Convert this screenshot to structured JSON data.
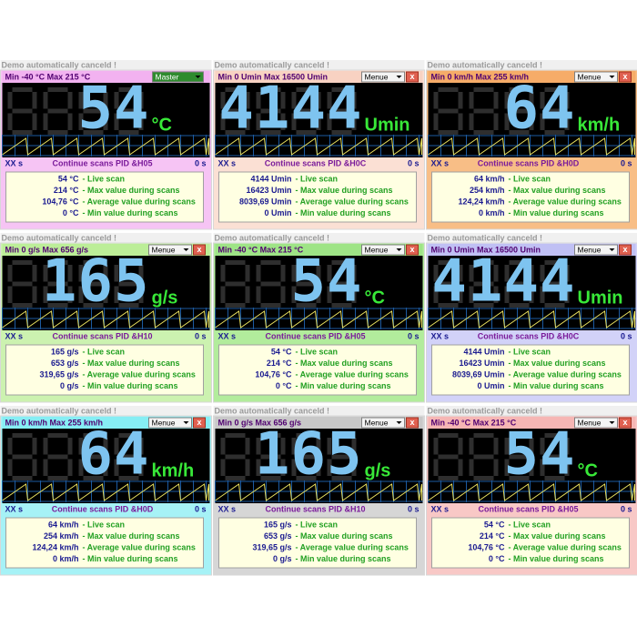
{
  "panels": [
    {
      "demo": "Demo automatically canceld !",
      "title": "Min -40 °C Max 215 °C",
      "menu": "Master",
      "display": "54",
      "unit": "°C",
      "status_left": "XX s",
      "status_center": "Continue scans PID &H05",
      "status_right": "0 s",
      "stats": [
        [
          "54 °C",
          "- Live scan"
        ],
        [
          "214 °C",
          "- Max value during scans"
        ],
        [
          "104,76 °C",
          "- Average value during scans"
        ],
        [
          "0 °C",
          "- Min value during scans"
        ]
      ]
    },
    {
      "demo": "Demo automatically canceld !",
      "title": "Min 0 Umin Max 16500 Umin",
      "menu": "Menue",
      "close": "x",
      "display": "4144",
      "unit": "Umin",
      "status_left": "XX s",
      "status_center": "Continue scans PID &H0C",
      "status_right": "0 s",
      "stats": [
        [
          "4144 Umin",
          "- Live scan"
        ],
        [
          "16423 Umin",
          "- Max value during scans"
        ],
        [
          "8039,69 Umin",
          "- Average value during scans"
        ],
        [
          "0 Umin",
          "- Min value during scans"
        ]
      ]
    },
    {
      "demo": "Demo automatically canceld !",
      "title": "Min 0 km/h Max 255 km/h",
      "menu": "Menue",
      "close": "x",
      "display": "64",
      "unit": "km/h",
      "status_left": "XX s",
      "status_center": "Continue scans PID &H0D",
      "status_right": "0 s",
      "stats": [
        [
          "64 km/h",
          "- Live scan"
        ],
        [
          "254 km/h",
          "- Max value during scans"
        ],
        [
          "124,24 km/h",
          "- Average value during scans"
        ],
        [
          "0 km/h",
          "- Min value during scans"
        ]
      ]
    },
    {
      "demo": "Demo automatically canceld !",
      "title": "Min 0 g/s Max 656 g/s",
      "menu": "Menue",
      "close": "x",
      "display": "165",
      "unit": "g/s",
      "status_left": "XX s",
      "status_center": "Continue scans PID &H10",
      "status_right": "0 s",
      "stats": [
        [
          "165 g/s",
          "- Live scan"
        ],
        [
          "653 g/s",
          "- Max value during scans"
        ],
        [
          "319,65 g/s",
          "- Average value during scans"
        ],
        [
          "0 g/s",
          "- Min value during scans"
        ]
      ]
    },
    {
      "demo": "Demo automatically canceld !",
      "title": "Min -40 °C Max 215 °C",
      "menu": "Menue",
      "close": "x",
      "display": "54",
      "unit": "°C",
      "status_left": "XX s",
      "status_center": "Continue scans PID &H05",
      "status_right": "0 s",
      "stats": [
        [
          "54 °C",
          "- Live scan"
        ],
        [
          "214 °C",
          "- Max value during scans"
        ],
        [
          "104,76 °C",
          "- Average value during scans"
        ],
        [
          "0 °C",
          "- Min value during scans"
        ]
      ]
    },
    {
      "demo": "Demo automatically canceld !",
      "title": "Min 0 Umin Max 16500 Umin",
      "menu": "Menue",
      "close": "x",
      "display": "4144",
      "unit": "Umin",
      "status_left": "XX s",
      "status_center": "Continue scans PID &H0C",
      "status_right": "0 s",
      "stats": [
        [
          "4144 Umin",
          "- Live scan"
        ],
        [
          "16423 Umin",
          "- Max value during scans"
        ],
        [
          "8039,69 Umin",
          "- Average value during scans"
        ],
        [
          "0 Umin",
          "- Min value during scans"
        ]
      ]
    },
    {
      "demo": "Demo automatically canceld !",
      "title": "Min 0 km/h Max 255 km/h",
      "menu": "Menue",
      "close": "x",
      "display": "64",
      "unit": "km/h",
      "status_left": "XX s",
      "status_center": "Continue scans PID &H0D",
      "status_right": "0 s",
      "stats": [
        [
          "64 km/h",
          "- Live scan"
        ],
        [
          "254 km/h",
          "- Max value during scans"
        ],
        [
          "124,24 km/h",
          "- Average value during scans"
        ],
        [
          "0 km/h",
          "- Min value during scans"
        ]
      ]
    },
    {
      "demo": "Demo automatically canceld !",
      "title": "Min 0 g/s Max 656 g/s",
      "menu": "Menue",
      "close": "x",
      "display": "165",
      "unit": "g/s",
      "status_left": "XX s",
      "status_center": "Continue scans PID &H10",
      "status_right": "0 s",
      "stats": [
        [
          "165 g/s",
          "- Live scan"
        ],
        [
          "653 g/s",
          "- Max value during scans"
        ],
        [
          "319,65 g/s",
          "- Average value during scans"
        ],
        [
          "0 g/s",
          "- Min value during scans"
        ]
      ]
    },
    {
      "demo": "Demo automatically canceld !",
      "title": "Min -40 °C Max 215 °C",
      "menu": "Menue",
      "close": "x",
      "display": "54",
      "unit": "°C",
      "status_left": "XX s",
      "status_center": "Continue scans PID &H05",
      "status_right": "0 s",
      "stats": [
        [
          "54 °C",
          "- Live scan"
        ],
        [
          "214 °C",
          "- Max value during scans"
        ],
        [
          "104,76 °C",
          "- Average value during scans"
        ],
        [
          "0 °C",
          "- Min value during scans"
        ]
      ]
    }
  ]
}
